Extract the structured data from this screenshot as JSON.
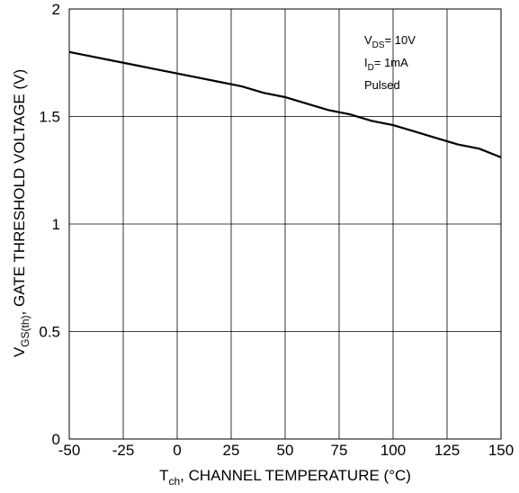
{
  "chart_data": {
    "type": "line",
    "title": "",
    "xlabel": {
      "main": "T",
      "sub": "ch",
      "rest": ", CHANNEL TEMPERATURE (°C)"
    },
    "ylabel": {
      "main": "V",
      "sub": "GS(th)",
      "rest": ",  GATE THRESHOLD VOLTAGE (V)"
    },
    "xlim": [
      -50,
      150
    ],
    "ylim": [
      0,
      2
    ],
    "xticks": [
      -50,
      -25,
      0,
      25,
      50,
      75,
      100,
      125,
      150
    ],
    "xtick_labels": [
      "-50",
      "-25",
      "0",
      "25",
      "50",
      "75",
      "100",
      "125",
      "150"
    ],
    "yticks": [
      0,
      0.5,
      1,
      1.5,
      2
    ],
    "ytick_labels": [
      "0",
      "0.5",
      "1",
      "1.5",
      "2"
    ],
    "grid": true,
    "annotations": [
      {
        "main": "V",
        "sub": "DS",
        "rest": "= 10V"
      },
      {
        "main": "I",
        "sub": "D",
        "rest": "= 1mA"
      },
      {
        "main": "Pulsed",
        "sub": "",
        "rest": ""
      }
    ],
    "series": [
      {
        "x": [
          -50,
          -40,
          -30,
          -20,
          -10,
          0,
          10,
          20,
          30,
          40,
          50,
          60,
          70,
          80,
          90,
          100,
          110,
          120,
          130,
          140,
          150
        ],
        "y": [
          1.8,
          1.78,
          1.76,
          1.74,
          1.72,
          1.7,
          1.68,
          1.66,
          1.64,
          1.61,
          1.59,
          1.56,
          1.53,
          1.51,
          1.48,
          1.46,
          1.43,
          1.4,
          1.37,
          1.35,
          1.31
        ]
      }
    ]
  }
}
